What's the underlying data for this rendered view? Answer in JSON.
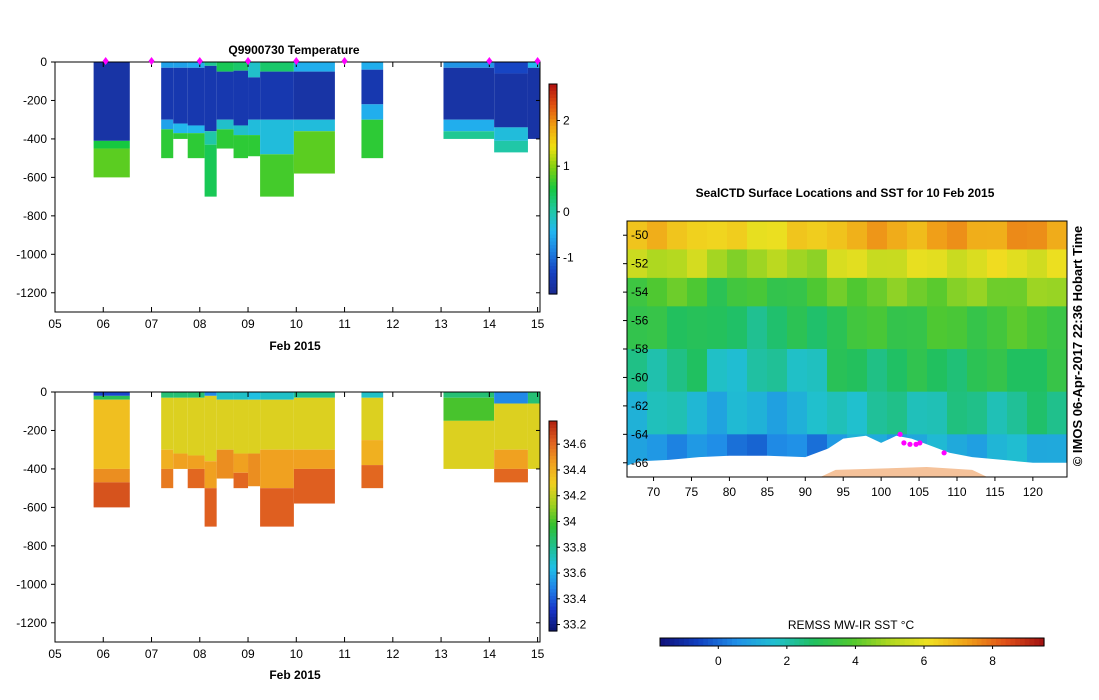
{
  "colors": {
    "ink": "#000000",
    "marker": "#ff00ff",
    "land_ice": "#ffffff",
    "shelf": "#f5c29a",
    "cmap_temp": [
      "#1a2a90",
      "#1640c0",
      "#1e7fe0",
      "#22b8f0",
      "#20c8a0",
      "#16c840",
      "#80d010",
      "#f0e010",
      "#f0a010",
      "#e05010",
      "#b01010"
    ],
    "cmap_sal": [
      "#0a1470",
      "#1835c8",
      "#2080e8",
      "#20c0e8",
      "#20c090",
      "#30c030",
      "#a0d020",
      "#f0d020",
      "#f0a020",
      "#e06020",
      "#b02010"
    ],
    "cmap_sst": [
      "#10107a",
      "#1040c0",
      "#2090e8",
      "#20c0d0",
      "#20c060",
      "#50c830",
      "#b0d820",
      "#f0e020",
      "#f0a018",
      "#e05018",
      "#a01010"
    ]
  },
  "chart_data": [
    {
      "id": "temperature",
      "type": "heatmap",
      "title": "Q9900730  Temperature",
      "xlabel": "Feb 2015",
      "ylabel": "",
      "x_ticks": [
        "05",
        "06",
        "07",
        "08",
        "09",
        "10",
        "11",
        "12",
        "13",
        "14",
        "15"
      ],
      "y_ticks": [
        "0",
        "-200",
        "-400",
        "-600",
        "-800",
        "-1000",
        "-1200"
      ],
      "ylim": [
        -1300,
        0
      ],
      "xlim": [
        5,
        15.05
      ],
      "colorbar": {
        "min": -1.8,
        "max": 2.8,
        "ticks": [
          "2",
          "1",
          "0",
          "-1"
        ],
        "tick_values": [
          2,
          1,
          0,
          -1
        ]
      },
      "profile_markers": [
        6.05,
        7.0,
        8.0,
        9.0,
        10.0,
        11.0,
        14.0,
        15.0
      ],
      "profiles": [
        {
          "x0": 5.8,
          "x1": 6.55,
          "bottom": -600,
          "bands": [
            [
              0,
              -410,
              -1.6
            ],
            [
              -410,
              -450,
              0.5
            ],
            [
              -450,
              -600,
              0.8
            ]
          ]
        },
        {
          "x0": 7.2,
          "x1": 7.45,
          "bottom": -500,
          "bands": [
            [
              0,
              -30,
              -0.6
            ],
            [
              -30,
              -300,
              -1.5
            ],
            [
              -300,
              -350,
              -0.6
            ],
            [
              -350,
              -500,
              0.6
            ]
          ]
        },
        {
          "x0": 7.45,
          "x1": 7.75,
          "bottom": -400,
          "bands": [
            [
              0,
              -30,
              -0.6
            ],
            [
              -30,
              -320,
              -1.5
            ],
            [
              -320,
              -370,
              -0.4
            ],
            [
              -370,
              -400,
              0.6
            ]
          ]
        },
        {
          "x0": 7.75,
          "x1": 8.1,
          "bottom": -500,
          "bands": [
            [
              0,
              -30,
              -0.5
            ],
            [
              -30,
              -330,
              -1.5
            ],
            [
              -330,
              -370,
              -0.4
            ],
            [
              -370,
              -500,
              0.6
            ]
          ]
        },
        {
          "x0": 8.1,
          "x1": 8.35,
          "bottom": -700,
          "bands": [
            [
              0,
              -20,
              0.1
            ],
            [
              -20,
              -360,
              -1.5
            ],
            [
              -360,
              -430,
              0.0
            ],
            [
              -430,
              -700,
              0.4
            ]
          ]
        },
        {
          "x0": 8.35,
          "x1": 8.7,
          "bottom": -450,
          "bands": [
            [
              0,
              -50,
              0.4
            ],
            [
              -50,
              -300,
              -1.5
            ],
            [
              -300,
              -350,
              -0.2
            ],
            [
              -350,
              -450,
              0.6
            ]
          ]
        },
        {
          "x0": 8.7,
          "x1": 9.0,
          "bottom": -500,
          "bands": [
            [
              0,
              -45,
              0.3
            ],
            [
              -45,
              -330,
              -1.5
            ],
            [
              -330,
              -380,
              -0.2
            ],
            [
              -380,
              -500,
              0.6
            ]
          ]
        },
        {
          "x0": 9.0,
          "x1": 9.25,
          "bottom": -490,
          "bands": [
            [
              0,
              -80,
              -0.2
            ],
            [
              -80,
              -300,
              -1.5
            ],
            [
              -300,
              -380,
              -0.3
            ],
            [
              -380,
              -490,
              0.6
            ]
          ]
        },
        {
          "x0": 9.25,
          "x1": 9.95,
          "bottom": -700,
          "bands": [
            [
              0,
              -50,
              0.3
            ],
            [
              -50,
              -300,
              -1.5
            ],
            [
              -300,
              -480,
              -0.3
            ],
            [
              -480,
              -700,
              0.7
            ]
          ]
        },
        {
          "x0": 9.95,
          "x1": 10.8,
          "bottom": -580,
          "bands": [
            [
              0,
              -50,
              -0.5
            ],
            [
              -50,
              -300,
              -1.6
            ],
            [
              -300,
              -360,
              -0.3
            ],
            [
              -360,
              -580,
              0.8
            ]
          ]
        },
        {
          "x0": 11.35,
          "x1": 11.8,
          "bottom": -500,
          "bands": [
            [
              0,
              -40,
              -0.5
            ],
            [
              -40,
              -220,
              -1.5
            ],
            [
              -220,
              -300,
              -0.5
            ],
            [
              -300,
              -500,
              0.6
            ]
          ]
        },
        {
          "x0": 13.05,
          "x1": 14.1,
          "bottom": -400,
          "bands": [
            [
              0,
              -30,
              -0.7
            ],
            [
              -30,
              -300,
              -1.6
            ],
            [
              -300,
              -360,
              -0.5
            ],
            [
              -360,
              -400,
              0.1
            ]
          ]
        },
        {
          "x0": 14.1,
          "x1": 14.8,
          "bottom": -470,
          "bands": [
            [
              0,
              -60,
              -1.3
            ],
            [
              -60,
              -340,
              -1.6
            ],
            [
              -340,
              -410,
              -0.3
            ],
            [
              -410,
              -470,
              0.0
            ]
          ]
        },
        {
          "x0": 14.8,
          "x1": 15.05,
          "bottom": -400,
          "bands": [
            [
              0,
              -30,
              -0.4
            ],
            [
              -30,
              -400,
              -1.6
            ]
          ]
        }
      ]
    },
    {
      "id": "salinity",
      "type": "heatmap",
      "title": "",
      "xlabel": "Feb 2015",
      "ylabel": "",
      "x_ticks": [
        "05",
        "06",
        "07",
        "08",
        "09",
        "10",
        "11",
        "12",
        "13",
        "14",
        "15"
      ],
      "y_ticks": [
        "0",
        "-200",
        "-400",
        "-600",
        "-800",
        "-1000",
        "-1200"
      ],
      "ylim": [
        -1300,
        0
      ],
      "xlim": [
        5,
        15.05
      ],
      "colorbar": {
        "min": 33.15,
        "max": 34.78,
        "ticks": [
          "34.6",
          "34.4",
          "34.2",
          "34",
          "33.8",
          "33.6",
          "33.4",
          "33.2"
        ],
        "tick_values": [
          34.6,
          34.4,
          34.2,
          34.0,
          33.8,
          33.6,
          33.4,
          33.2
        ]
      },
      "profiles": [
        {
          "x0": 5.8,
          "x1": 6.55,
          "bottom": -600,
          "bands": [
            [
              0,
              -20,
              33.35
            ],
            [
              -20,
              -40,
              33.9
            ],
            [
              -40,
              -400,
              34.35
            ],
            [
              -400,
              -470,
              34.5
            ],
            [
              -470,
              -600,
              34.65
            ]
          ]
        },
        {
          "x0": 7.2,
          "x1": 7.45,
          "bottom": -500,
          "bands": [
            [
              0,
              -30,
              33.85
            ],
            [
              -30,
              -300,
              34.25
            ],
            [
              -300,
              -400,
              34.4
            ],
            [
              -400,
              -500,
              34.55
            ]
          ]
        },
        {
          "x0": 7.45,
          "x1": 7.75,
          "bottom": -400,
          "bands": [
            [
              0,
              -30,
              33.85
            ],
            [
              -30,
              -320,
              34.25
            ],
            [
              -320,
              -400,
              34.45
            ]
          ]
        },
        {
          "x0": 7.75,
          "x1": 8.1,
          "bottom": -500,
          "bands": [
            [
              0,
              -30,
              33.85
            ],
            [
              -30,
              -330,
              34.25
            ],
            [
              -330,
              -400,
              34.45
            ],
            [
              -400,
              -500,
              34.6
            ]
          ]
        },
        {
          "x0": 8.1,
          "x1": 8.35,
          "bottom": -700,
          "bands": [
            [
              0,
              -20,
              33.5
            ],
            [
              -20,
              -360,
              34.25
            ],
            [
              -360,
              -500,
              34.45
            ],
            [
              -500,
              -700,
              34.62
            ]
          ]
        },
        {
          "x0": 8.35,
          "x1": 8.7,
          "bottom": -450,
          "bands": [
            [
              0,
              -40,
              33.7
            ],
            [
              -40,
              -300,
              34.25
            ],
            [
              -300,
              -450,
              34.5
            ]
          ]
        },
        {
          "x0": 8.7,
          "x1": 9.0,
          "bottom": -500,
          "bands": [
            [
              0,
              -40,
              33.7
            ],
            [
              -40,
              -320,
              34.25
            ],
            [
              -320,
              -420,
              34.45
            ],
            [
              -420,
              -500,
              34.6
            ]
          ]
        },
        {
          "x0": 9.0,
          "x1": 9.25,
          "bottom": -490,
          "bands": [
            [
              0,
              -40,
              33.65
            ],
            [
              -40,
              -320,
              34.25
            ],
            [
              -320,
              -490,
              34.5
            ]
          ]
        },
        {
          "x0": 9.25,
          "x1": 9.95,
          "bottom": -700,
          "bands": [
            [
              0,
              -40,
              33.7
            ],
            [
              -40,
              -300,
              34.25
            ],
            [
              -300,
              -500,
              34.45
            ],
            [
              -500,
              -700,
              34.62
            ]
          ]
        },
        {
          "x0": 9.95,
          "x1": 10.8,
          "bottom": -580,
          "bands": [
            [
              0,
              -30,
              33.8
            ],
            [
              -30,
              -300,
              34.25
            ],
            [
              -300,
              -400,
              34.45
            ],
            [
              -400,
              -580,
              34.62
            ]
          ]
        },
        {
          "x0": 11.35,
          "x1": 11.8,
          "bottom": -500,
          "bands": [
            [
              0,
              -30,
              33.7
            ],
            [
              -30,
              -250,
              34.25
            ],
            [
              -250,
              -380,
              34.4
            ],
            [
              -380,
              -500,
              34.6
            ]
          ]
        },
        {
          "x0": 13.05,
          "x1": 14.1,
          "bottom": -400,
          "bands": [
            [
              0,
              -30,
              33.85
            ],
            [
              -30,
              -150,
              34.0
            ],
            [
              -150,
              -400,
              34.25
            ]
          ]
        },
        {
          "x0": 14.1,
          "x1": 14.8,
          "bottom": -470,
          "bands": [
            [
              0,
              -60,
              33.5
            ],
            [
              -60,
              -300,
              34.25
            ],
            [
              -300,
              -400,
              34.45
            ],
            [
              -400,
              -470,
              34.6
            ]
          ]
        },
        {
          "x0": 14.8,
          "x1": 15.05,
          "bottom": -400,
          "bands": [
            [
              0,
              -60,
              33.85
            ],
            [
              -60,
              -400,
              34.25
            ]
          ]
        }
      ]
    },
    {
      "id": "sst_map",
      "type": "heatmap",
      "title": "SealCTD Surface Locations and SST for 10 Feb 2015",
      "xlabel": "",
      "ylabel": "",
      "x_ticks": [
        "70",
        "75",
        "80",
        "85",
        "90",
        "95",
        "100",
        "105",
        "110",
        "115",
        "120"
      ],
      "x_tick_values": [
        70,
        75,
        80,
        85,
        90,
        95,
        100,
        105,
        110,
        115,
        120
      ],
      "y_ticks": [
        "-50",
        "-52",
        "-54",
        "-56",
        "-58",
        "-60",
        "-62",
        "-64",
        "-66"
      ],
      "y_tick_values": [
        -50,
        -52,
        -54,
        -56,
        -58,
        -60,
        -62,
        -64,
        -66
      ],
      "xlim": [
        66.5,
        124.5
      ],
      "ylim": [
        -67,
        -49
      ],
      "side_label": "© IMOS 06-Apr-2017 22:36 Hobart Time",
      "colorbar": {
        "title": "REMSS MW-IR SST °C",
        "min": -1.7,
        "max": 9.5,
        "ticks": [
          "0",
          "2",
          "4",
          "6",
          "8"
        ],
        "tick_values": [
          0,
          2,
          4,
          6,
          8
        ]
      },
      "sst_bands": [
        {
          "lat_top": -49,
          "lat_bot": -51,
          "value": 6.6
        },
        {
          "lat_top": -51,
          "lat_bot": -53,
          "value": 5.2
        },
        {
          "lat_top": -53,
          "lat_bot": -55,
          "value": 3.8
        },
        {
          "lat_top": -55,
          "lat_bot": -58,
          "value": 3.0
        },
        {
          "lat_top": -58,
          "lat_bot": -61,
          "value": 2.3
        },
        {
          "lat_top": -61,
          "lat_bot": -64,
          "value": 1.6
        },
        {
          "lat_top": -64,
          "lat_bot": -67,
          "value": 0.6
        }
      ],
      "seal_locations": [
        {
          "lon": 103.0,
          "lat": -64.6
        },
        {
          "lon": 103.8,
          "lat": -64.7
        },
        {
          "lon": 104.6,
          "lat": -64.7
        },
        {
          "lon": 105.1,
          "lat": -64.6
        },
        {
          "lon": 102.5,
          "lat": -64.0
        },
        {
          "lon": 108.3,
          "lat": -65.3
        }
      ]
    }
  ]
}
